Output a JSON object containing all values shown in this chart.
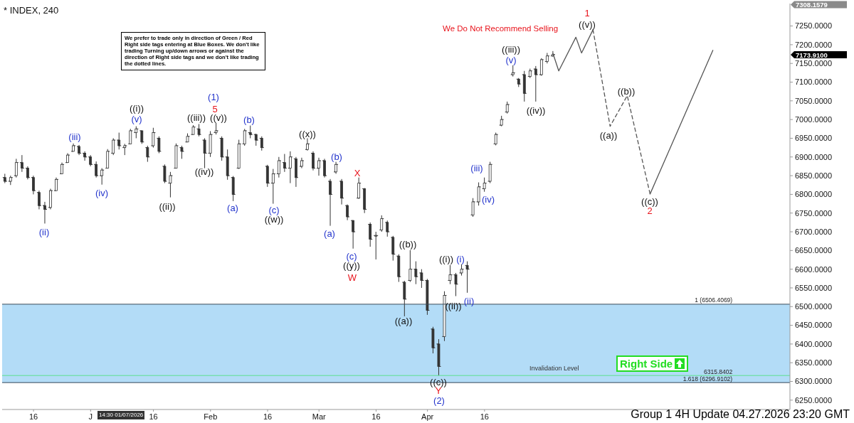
{
  "chart_data": {
    "type": "candlestick",
    "title": "* INDEX, 240",
    "color": "#333333",
    "categories": [
      null,
      null,
      null,
      null,
      null,
      "16",
      null,
      null,
      null,
      null,
      null,
      null,
      null,
      null,
      null,
      "J",
      null,
      null,
      null,
      null,
      null,
      null,
      null,
      null,
      null,
      null,
      "16",
      null,
      null,
      null,
      null,
      null,
      null,
      null,
      null,
      null,
      "Feb",
      null,
      null,
      null,
      null,
      null,
      null,
      null,
      null,
      null,
      "16",
      null,
      null,
      null,
      null,
      null,
      null,
      null,
      null,
      "Mar",
      null,
      null,
      null,
      null,
      null,
      null,
      null,
      null,
      null,
      "16",
      null,
      null,
      null,
      null,
      null,
      null,
      null,
      null,
      "Apr",
      null,
      null,
      null,
      null,
      null,
      null,
      null,
      null,
      null,
      "16",
      null,
      null,
      null,
      null,
      null,
      null,
      null,
      null,
      null,
      null,
      null,
      null,
      null,
      null,
      null,
      null,
      null,
      null,
      null,
      null,
      null,
      null,
      null,
      null,
      null,
      null,
      null,
      null,
      null,
      null,
      null,
      null,
      null,
      null,
      null,
      null,
      null,
      null,
      null,
      null,
      null,
      null,
      null,
      null,
      null,
      null,
      null,
      null,
      null,
      null,
      null,
      null,
      null
    ],
    "ohlc": [
      [
        6845,
        6855,
        6830,
        6835
      ],
      [
        6835,
        6850,
        6825,
        6845
      ],
      [
        6850,
        6895,
        6845,
        6885
      ],
      [
        6885,
        6905,
        6860,
        6870
      ],
      [
        6870,
        6875,
        6840,
        6845
      ],
      [
        6845,
        6850,
        6800,
        6810
      ],
      [
        6805,
        6810,
        6760,
        6770
      ],
      [
        6770,
        6780,
        6722,
        6760
      ],
      [
        6765,
        6815,
        6760,
        6810
      ],
      [
        6810,
        6845,
        6810,
        6840
      ],
      [
        6855,
        6885,
        6855,
        6880
      ],
      [
        6885,
        6910,
        6885,
        6905
      ],
      [
        6915,
        6936,
        6915,
        6930
      ],
      [
        6928,
        6932,
        6905,
        6910
      ],
      [
        6910,
        6915,
        6890,
        6900
      ],
      [
        6900,
        6905,
        6875,
        6880
      ],
      [
        6880,
        6888,
        6845,
        6850
      ],
      [
        6850,
        6870,
        6826,
        6865
      ],
      [
        6870,
        6921,
        6870,
        6915
      ],
      [
        6910,
        6950,
        6905,
        6945
      ],
      [
        6945,
        6965,
        6920,
        6930
      ],
      [
        6925,
        6935,
        6905,
        6930
      ],
      [
        6935,
        6975,
        6935,
        6970
      ],
      [
        6965,
        6982,
        6950,
        6975
      ],
      [
        6970,
        6970,
        6935,
        6940
      ],
      [
        6925,
        6930,
        6887,
        6900
      ],
      [
        6930,
        6978,
        6925,
        6965
      ],
      [
        6950,
        6955,
        6910,
        6915
      ],
      [
        6875,
        6880,
        6830,
        6835
      ],
      [
        6830,
        6860,
        6792,
        6850
      ],
      [
        6870,
        6936,
        6870,
        6930
      ],
      [
        6925,
        6930,
        6895,
        6915
      ],
      [
        6940,
        6963,
        6940,
        6955
      ],
      [
        6960,
        6985,
        6960,
        6980
      ],
      [
        6975,
        6988,
        6955,
        6960
      ],
      [
        6945,
        6950,
        6870,
        6910
      ],
      [
        6910,
        6969,
        6900,
        6960
      ],
      [
        6965,
        6991,
        6960,
        6970
      ],
      [
        6950,
        6955,
        6890,
        6900
      ],
      [
        6900,
        6920,
        6839,
        6850
      ],
      [
        6845,
        6849,
        6782,
        6800
      ],
      [
        6870,
        6946,
        6868,
        6935
      ],
      [
        6935,
        6975,
        6930,
        6970
      ],
      [
        6965,
        6984,
        6950,
        6960
      ],
      [
        6960,
        6962,
        6930,
        6945
      ],
      [
        6950,
        6955,
        6917,
        6925
      ],
      [
        6875,
        6879,
        6820,
        6830
      ],
      [
        6830,
        6868,
        6775,
        6855
      ],
      [
        6855,
        6900,
        6845,
        6890
      ],
      [
        6885,
        6908,
        6860,
        6870
      ],
      [
        6870,
        6915,
        6830,
        6900
      ],
      [
        6895,
        6900,
        6820,
        6845
      ],
      [
        6875,
        6898,
        6870,
        6890
      ],
      [
        6920,
        6950,
        6917,
        6935
      ],
      [
        6910,
        6915,
        6864,
        6870
      ],
      [
        6870,
        6898,
        6850,
        6890
      ],
      [
        6890,
        6895,
        6845,
        6850
      ],
      [
        6835,
        6841,
        6716,
        6800
      ],
      [
        6860,
        6887,
        6855,
        6880
      ],
      [
        6835,
        6841,
        6773,
        6790
      ],
      [
        6770,
        6773,
        6731,
        6740
      ],
      [
        6730,
        6731,
        6655,
        6700
      ],
      [
        6790,
        6845,
        6788,
        6830
      ],
      [
        6815,
        6817,
        6750,
        6760
      ],
      [
        6720,
        6725,
        6660,
        6680
      ],
      [
        6690,
        6700,
        6626,
        6690
      ],
      [
        6705,
        6744,
        6700,
        6735
      ],
      [
        6725,
        6730,
        6687,
        6700
      ],
      [
        6685,
        6689,
        6623,
        6640
      ],
      [
        6635,
        6640,
        6566,
        6580
      ],
      [
        6565,
        6569,
        6474,
        6520
      ],
      [
        6570,
        6651,
        6566,
        6600
      ],
      [
        6600,
        6621,
        6560,
        6580
      ],
      [
        6590,
        6600,
        6550,
        6570
      ],
      [
        6570,
        6574,
        6478,
        6490
      ],
      [
        6440,
        6446,
        6375,
        6390
      ],
      [
        6400,
        6413,
        6316,
        6340
      ],
      [
        6420,
        6541,
        6408,
        6530
      ],
      [
        6570,
        6611,
        6560,
        6585
      ],
      [
        6585,
        6590,
        6528,
        6560
      ],
      [
        6590,
        6613,
        6583,
        6600
      ],
      [
        6610,
        6621,
        6537,
        6600
      ],
      [
        6745,
        6790,
        6740,
        6780
      ],
      [
        6780,
        6832,
        6770,
        6820
      ],
      [
        6815,
        6845,
        6807,
        6830
      ],
      [
        6835,
        6887,
        6830,
        6880
      ],
      [
        6935,
        6965,
        6931,
        6960
      ],
      [
        6985,
        7010,
        6982,
        7000
      ],
      [
        7020,
        7048,
        7016,
        7040
      ],
      [
        7120,
        7145,
        7115,
        7125
      ],
      [
        7108,
        7111,
        7087,
        7095
      ],
      [
        7120,
        7130,
        7048,
        7070
      ],
      [
        7115,
        7136,
        7111,
        7130
      ],
      [
        7135,
        7143,
        7048,
        7120
      ],
      [
        7120,
        7164,
        7117,
        7160
      ],
      [
        7155,
        7178,
        7150,
        7170
      ],
      [
        7170,
        7183,
        7168,
        7173.91
      ],
      null,
      null,
      null,
      null,
      null,
      null,
      null,
      null,
      null,
      null,
      null,
      null,
      null,
      null,
      null,
      null,
      null,
      null,
      null,
      null,
      null,
      null,
      null,
      null,
      null,
      null,
      null,
      null,
      null,
      null,
      null,
      null,
      null,
      null,
      null,
      null,
      null,
      null,
      null,
      null,
      null
    ],
    "series": [
      {
        "type": "line",
        "color": "#555555",
        "line_style": "solid",
        "values": [
          null,
          null,
          null,
          null,
          null,
          null,
          null,
          null,
          null,
          null,
          null,
          null,
          null,
          null,
          null,
          null,
          null,
          null,
          null,
          null,
          null,
          null,
          null,
          null,
          null,
          null,
          null,
          null,
          null,
          null,
          null,
          null,
          null,
          null,
          null,
          null,
          null,
          null,
          null,
          null,
          null,
          null,
          null,
          null,
          null,
          null,
          null,
          null,
          null,
          null,
          null,
          null,
          null,
          null,
          null,
          null,
          null,
          null,
          null,
          null,
          null,
          null,
          null,
          null,
          null,
          null,
          null,
          null,
          null,
          null,
          null,
          null,
          null,
          null,
          null,
          null,
          null,
          null,
          null,
          null,
          null,
          null,
          null,
          null,
          null,
          null,
          null,
          null,
          null,
          null,
          null,
          null,
          null,
          null,
          null,
          null,
          7176,
          7130,
          null,
          null,
          7220,
          7178,
          null,
          7240,
          null,
          null,
          null,
          null,
          null,
          null,
          null,
          null,
          null,
          null,
          null,
          null,
          null,
          null,
          null,
          null,
          null,
          null,
          null,
          null,
          null,
          null,
          null,
          null,
          null,
          null,
          null,
          null,
          null,
          null,
          null,
          null,
          null,
          null
        ]
      },
      {
        "type": "line",
        "color": "#555555",
        "line_style": "dashed",
        "values": [
          null,
          null,
          null,
          null,
          null,
          null,
          null,
          null,
          null,
          null,
          null,
          null,
          null,
          null,
          null,
          null,
          null,
          null,
          null,
          null,
          null,
          null,
          null,
          null,
          null,
          null,
          null,
          null,
          null,
          null,
          null,
          null,
          null,
          null,
          null,
          null,
          null,
          null,
          null,
          null,
          null,
          null,
          null,
          null,
          null,
          null,
          null,
          null,
          null,
          null,
          null,
          null,
          null,
          null,
          null,
          null,
          null,
          null,
          null,
          null,
          null,
          null,
          null,
          null,
          null,
          null,
          null,
          null,
          null,
          null,
          null,
          null,
          null,
          null,
          null,
          null,
          null,
          null,
          null,
          null,
          null,
          null,
          null,
          null,
          null,
          null,
          null,
          null,
          null,
          null,
          null,
          null,
          null,
          null,
          null,
          null,
          null,
          null,
          null,
          null,
          null,
          null,
          null,
          7240,
          null,
          null,
          6982,
          null,
          null,
          7064,
          null,
          null,
          null,
          6801,
          null,
          null,
          null,
          null,
          null,
          null,
          null,
          null,
          null,
          null,
          null,
          null,
          null,
          null,
          null,
          null,
          null,
          null,
          null,
          null,
          null,
          null,
          null,
          null
        ]
      },
      {
        "type": "line",
        "color": "#555555",
        "line_style": "solid",
        "values": [
          null,
          null,
          null,
          null,
          null,
          null,
          null,
          null,
          null,
          null,
          null,
          null,
          null,
          null,
          null,
          null,
          null,
          null,
          null,
          null,
          null,
          null,
          null,
          null,
          null,
          null,
          null,
          null,
          null,
          null,
          null,
          null,
          null,
          null,
          null,
          null,
          null,
          null,
          null,
          null,
          null,
          null,
          null,
          null,
          null,
          null,
          null,
          null,
          null,
          null,
          null,
          null,
          null,
          null,
          null,
          null,
          null,
          null,
          null,
          null,
          null,
          null,
          null,
          null,
          null,
          null,
          null,
          null,
          null,
          null,
          null,
          null,
          null,
          null,
          null,
          null,
          null,
          null,
          null,
          null,
          null,
          null,
          null,
          null,
          null,
          null,
          null,
          null,
          null,
          null,
          null,
          null,
          null,
          null,
          null,
          null,
          null,
          null,
          null,
          null,
          null,
          null,
          null,
          null,
          null,
          null,
          null,
          null,
          null,
          null,
          null,
          null,
          null,
          6801,
          null,
          null,
          null,
          null,
          null,
          null,
          null,
          null,
          null,
          null,
          7185,
          null,
          null,
          null,
          null,
          null,
          null,
          null,
          null,
          null,
          null,
          null,
          null,
          null
        ]
      }
    ],
    "ylim": [
      6225,
      7310
    ],
    "yticks": [
      {
        "value": 6250,
        "label": "6250.0000"
      },
      {
        "value": 6300,
        "label": "6300.0000"
      },
      {
        "value": 6350,
        "label": "6350.0000"
      },
      {
        "value": 6400,
        "label": "6400.0000"
      },
      {
        "value": 6450,
        "label": "6450.0000"
      },
      {
        "value": 6500,
        "label": "6500.0000"
      },
      {
        "value": 6550,
        "label": "6550.0000"
      },
      {
        "value": 6600,
        "label": "6600.0000"
      },
      {
        "value": 6650,
        "label": "6650.0000"
      },
      {
        "value": 6700,
        "label": "6700.0000"
      },
      {
        "value": 6750,
        "label": "6750.0000"
      },
      {
        "value": 6800,
        "label": "6800.0000"
      },
      {
        "value": 6850,
        "label": "6850.0000"
      },
      {
        "value": 6900,
        "label": "6900.0000"
      },
      {
        "value": 6950,
        "label": "6950.0000"
      },
      {
        "value": 7000,
        "label": "7000.0000"
      },
      {
        "value": 7050,
        "label": "7050.0000"
      },
      {
        "value": 7100,
        "label": "7100.0000"
      },
      {
        "value": 7150,
        "label": "7150.0000"
      },
      {
        "value": 7200,
        "label": "7200.0000"
      },
      {
        "value": 7250,
        "label": "7250.0000"
      }
    ],
    "bands": [
      {
        "axis": "y",
        "from": 6296.9102,
        "to": 6506.4069,
        "color": "#b3dcf7"
      }
    ],
    "ref_lines": [
      {
        "axis": "y",
        "value": 6506.4069,
        "label": "1 (6506.4069)",
        "color": "#3a4a5a"
      },
      {
        "axis": "y",
        "value": 6296.9102,
        "label": "1.618 (6296.9102)",
        "color": "#3a4a5a"
      },
      {
        "axis": "y",
        "value": 6315.8402,
        "label": "6315.8402",
        "color": "#5fe08f"
      }
    ],
    "annotations": [
      "We prefer to trade only in direction of Green / Red Right side tags entering at Blue Boxes. We don't like trading Turning up/down arrows or against the direction of Right side tags and we don't like trading the dotted lines.",
      "We Do Not Recommend Selling",
      "Invalidation Level",
      "Right Side",
      "14:30 01/07/2026",
      "Group 1 4H Update 04.27.2026 23:20 GMT",
      "7308.1579",
      "7173.9100",
      "(ii)",
      "(iii)",
      "(iv)",
      "((i))",
      "(v)",
      "((ii))",
      "((iii))",
      "((iv))",
      "(1)",
      "5",
      "((v))",
      "(a)",
      "(b)",
      "(c)",
      "((w))",
      "((x))",
      "(a)",
      "(b)",
      "X",
      "(c)",
      "((y))",
      "W",
      "((a))",
      "((b))",
      "((c))",
      "Y",
      "(2)",
      "((i))",
      "(i)",
      "((ii))",
      "(ii)",
      "(iii)",
      "(iv)",
      "((iii))",
      "(v)",
      "((iv))",
      "1",
      "((v))",
      "((a))",
      "((b))",
      "((c))",
      "2"
    ]
  }
}
